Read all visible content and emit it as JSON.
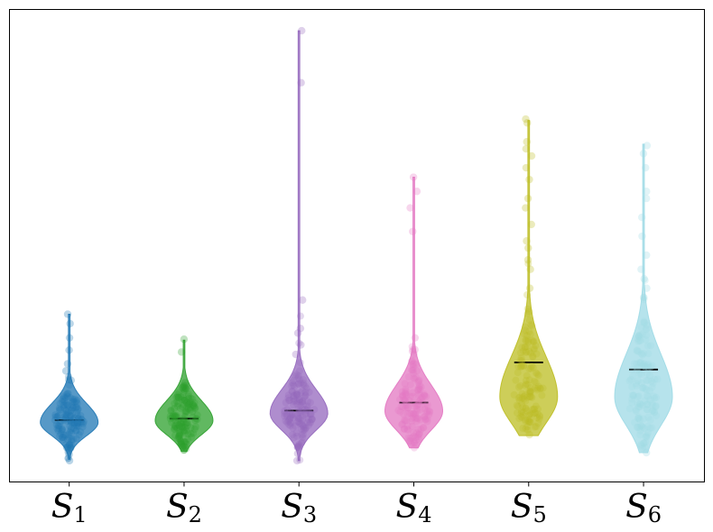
{
  "chart_data": {
    "type": "violin",
    "title": "",
    "xlabel": "",
    "ylabel": "",
    "grid": false,
    "legend": "none",
    "show_yticks": false,
    "ylim": [
      0,
      1
    ],
    "categories": [
      {
        "base": "S",
        "sub": "1"
      },
      {
        "base": "S",
        "sub": "2"
      },
      {
        "base": "S",
        "sub": "3"
      },
      {
        "base": "S",
        "sub": "4"
      },
      {
        "base": "S",
        "sub": "5"
      },
      {
        "base": "S",
        "sub": "6"
      }
    ],
    "series": [
      {
        "color": "#1f77b4",
        "median": 0.131,
        "min": 0.048,
        "max": 0.355,
        "peak": 0.126,
        "halfwidth": 0.5,
        "sigma_low": 0.028,
        "sigma_high": 0.04,
        "tail_high": 0.05,
        "outliers": [
          0.355,
          0.335,
          0.305,
          0.279,
          0.25,
          0.235,
          0.215,
          0.058,
          0.072,
          0.045
        ]
      },
      {
        "color": "#2ca02c",
        "median": 0.134,
        "min": 0.065,
        "max": 0.3,
        "peak": 0.13,
        "halfwidth": 0.5,
        "sigma_low": 0.03,
        "sigma_high": 0.042,
        "tail_high": 0.035,
        "outliers": [
          0.302,
          0.275,
          0.21,
          0.2,
          0.075,
          0.068
        ]
      },
      {
        "color": "#9467bd",
        "median": 0.151,
        "min": 0.045,
        "max": 0.955,
        "peak": 0.145,
        "halfwidth": 0.5,
        "sigma_low": 0.035,
        "sigma_high": 0.05,
        "tail_high": 0.06,
        "outliers": [
          0.955,
          0.845,
          0.385,
          0.325,
          0.315,
          0.29,
          0.27,
          0.045,
          0.06,
          0.075
        ]
      },
      {
        "color": "#e377c2",
        "median": 0.168,
        "min": 0.072,
        "max": 0.645,
        "peak": 0.15,
        "halfwidth": 0.5,
        "sigma_low": 0.04,
        "sigma_high": 0.055,
        "tail_high": 0.06,
        "outliers": [
          0.645,
          0.615,
          0.58,
          0.53,
          0.305,
          0.28,
          0.25,
          0.08
        ]
      },
      {
        "color": "#bcbd22",
        "median": 0.253,
        "min": 0.098,
        "max": 0.765,
        "peak": 0.18,
        "halfwidth": 0.5,
        "sigma_low": 0.055,
        "sigma_high": 0.085,
        "tail_high": 0.12,
        "outliers": [
          0.768,
          0.76,
          0.72,
          0.705,
          0.69,
          0.665,
          0.64,
          0.6,
          0.58,
          0.545,
          0.51,
          0.495,
          0.47,
          0.45,
          0.41,
          0.1
        ]
      },
      {
        "color": "#9edae5",
        "median": 0.238,
        "min": 0.062,
        "max": 0.715,
        "peak": 0.18,
        "halfwidth": 0.5,
        "sigma_low": 0.06,
        "sigma_high": 0.09,
        "tail_high": 0.11,
        "outliers": [
          0.712,
          0.695,
          0.665,
          0.615,
          0.6,
          0.56,
          0.52,
          0.48,
          0.45,
          0.43,
          0.41,
          0.062
        ]
      }
    ]
  }
}
